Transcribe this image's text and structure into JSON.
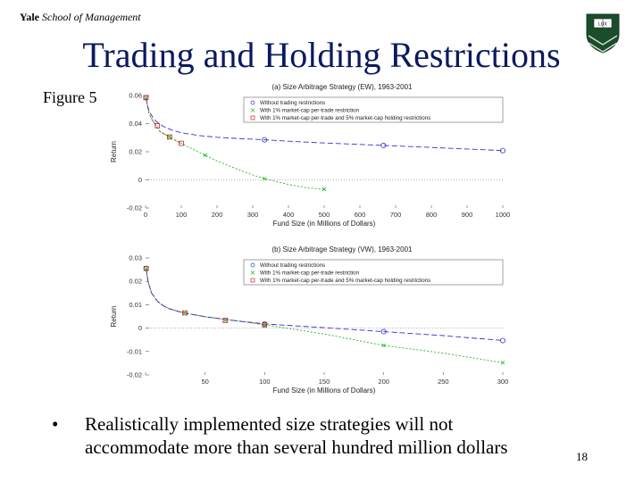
{
  "header": {
    "brand_bold": "Yale",
    "brand_italic": "School of Management",
    "title": "Trading and Holding Restrictions",
    "figure_label": "Figure 5"
  },
  "logo": {
    "icon": "yale-shield-logo",
    "text": "LUX"
  },
  "bullet": {
    "marker": "•",
    "line1": "Realistically implemented size strategies will not",
    "line2": "accommodate more than several hundred million dollars"
  },
  "page_number": "18",
  "colors": {
    "title": "#0a1a60",
    "blue": "#3333cc",
    "green": "#22bb22",
    "red": "#cc2222",
    "zero": "#999999"
  },
  "chart_data": [
    {
      "type": "line",
      "title": "(a) Size Arbitrage Strategy (EW), 1963-2001",
      "xlabel": "Fund Size (in Millions of Dollars)",
      "ylabel": "Return",
      "xlim": [
        0,
        1000
      ],
      "ylim": [
        -0.02,
        0.06
      ],
      "xticks": [
        0,
        100,
        200,
        300,
        400,
        500,
        600,
        700,
        800,
        900,
        1000
      ],
      "yticks": [
        -0.02,
        0,
        0.02,
        0.04,
        0.06
      ],
      "xtick_labels": [
        "0",
        "100",
        "200",
        "300",
        "400",
        "500",
        "600",
        "700",
        "800",
        "900",
        "1000"
      ],
      "ytick_labels": [
        "-0.02",
        "0",
        "0.02",
        "0.04",
        "0.06"
      ],
      "legend_position": "top-right",
      "series": [
        {
          "name": "Without trading restrictions",
          "marker": "circle",
          "x": [
            1,
            5,
            10,
            20,
            30,
            50,
            75,
            100,
            150,
            200,
            250,
            333,
            400,
            500,
            600,
            666,
            750,
            850,
            1000
          ],
          "y": [
            0.0585,
            0.053,
            0.049,
            0.0445,
            0.0415,
            0.038,
            0.0353,
            0.0335,
            0.0315,
            0.0303,
            0.0295,
            0.0285,
            0.0275,
            0.0262,
            0.0252,
            0.0245,
            0.0236,
            0.0225,
            0.0208
          ],
          "markers_x": [
            1,
            333,
            666,
            1000
          ],
          "markers_y": [
            0.0585,
            0.0285,
            0.0245,
            0.0208
          ]
        },
        {
          "name": "With 1% market-cap per-trade restriction",
          "marker": "x",
          "x": [
            1,
            10,
            20,
            40,
            60,
            80,
            100,
            150,
            200,
            250,
            300,
            333,
            400,
            450,
            500
          ],
          "y": [
            0.0585,
            0.047,
            0.042,
            0.0345,
            0.0315,
            0.0285,
            0.026,
            0.0195,
            0.0135,
            0.0082,
            0.0035,
            0.0008,
            -0.0033,
            -0.0055,
            -0.0067
          ],
          "markers_x": [
            1,
            67,
            167,
            333,
            500
          ],
          "markers_y": [
            0.0585,
            0.0305,
            0.0175,
            0.0008,
            -0.0067
          ]
        },
        {
          "name": "With 1% market-cap per-trade and 5% market-cap holding restrictions",
          "marker": "square",
          "x": [
            1,
            10,
            20,
            40,
            60,
            80,
            100
          ],
          "y": [
            0.0585,
            0.047,
            0.042,
            0.0345,
            0.0315,
            0.0285,
            0.026
          ],
          "markers_x": [
            1,
            33,
            67,
            100
          ],
          "markers_y": [
            0.0585,
            0.0385,
            0.0305,
            0.026
          ]
        }
      ]
    },
    {
      "type": "line",
      "title": "(b) Size Arbitrage Strategy (VW), 1963-2001",
      "xlabel": "Fund Size (in Millions of Dollars)",
      "ylabel": "Return",
      "xlim": [
        0,
        300
      ],
      "ylim": [
        -0.02,
        0.03
      ],
      "xticks": [
        0,
        50,
        100,
        150,
        200,
        250,
        300
      ],
      "yticks": [
        -0.02,
        -0.01,
        0,
        0.01,
        0.02,
        0.03
      ],
      "xtick_labels": [
        "",
        "50",
        "100",
        "150",
        "200",
        "250",
        "300"
      ],
      "ytick_labels": [
        "-0.02",
        "-0.01",
        "0",
        "0.01",
        "0.02",
        "0.03"
      ],
      "legend_position": "top-right",
      "series": [
        {
          "name": "Without trading restrictions",
          "marker": "circle",
          "x": [
            0.5,
            2,
            5,
            10,
            15,
            20,
            30,
            40,
            50,
            60,
            70,
            80,
            90,
            100,
            150,
            200,
            250,
            300
          ],
          "y": [
            0.0255,
            0.02,
            0.015,
            0.0115,
            0.0095,
            0.0083,
            0.0068,
            0.0058,
            0.0049,
            0.0042,
            0.0035,
            0.0029,
            0.0024,
            0.0018,
            0.0002,
            -0.0015,
            -0.0032,
            -0.0053
          ],
          "markers_x": [
            0.5,
            100,
            200,
            300
          ],
          "markers_y": [
            0.0255,
            0.0018,
            -0.0015,
            -0.0053
          ]
        },
        {
          "name": "With 1% market-cap per-trade restriction",
          "marker": "x",
          "x": [
            0.5,
            2,
            5,
            10,
            15,
            20,
            30,
            40,
            50,
            60,
            70,
            80,
            90,
            100,
            150,
            200,
            250,
            300
          ],
          "y": [
            0.0255,
            0.02,
            0.015,
            0.0115,
            0.0095,
            0.0083,
            0.0068,
            0.0058,
            0.0049,
            0.0042,
            0.0035,
            0.0029,
            0.0022,
            0.0014,
            -0.0025,
            -0.0074,
            -0.0107,
            -0.0148
          ],
          "markers_x": [
            0.5,
            33,
            67,
            100,
            200,
            300
          ],
          "markers_y": [
            0.0255,
            0.0065,
            0.0033,
            0.0014,
            -0.0074,
            -0.0148
          ]
        },
        {
          "name": "With 1% market-cap per-trade and 5% market-cap holding restrictions",
          "marker": "square",
          "x": [
            0.5,
            2,
            5,
            10,
            15,
            20,
            30,
            40,
            50,
            60,
            70,
            80,
            90,
            100
          ],
          "y": [
            0.0255,
            0.02,
            0.015,
            0.0115,
            0.0095,
            0.0083,
            0.0068,
            0.0058,
            0.0049,
            0.0042,
            0.0035,
            0.0029,
            0.0022,
            0.0014
          ],
          "markers_x": [
            0.5,
            33,
            67,
            100
          ],
          "markers_y": [
            0.0255,
            0.0065,
            0.0033,
            0.0014
          ]
        }
      ]
    }
  ]
}
